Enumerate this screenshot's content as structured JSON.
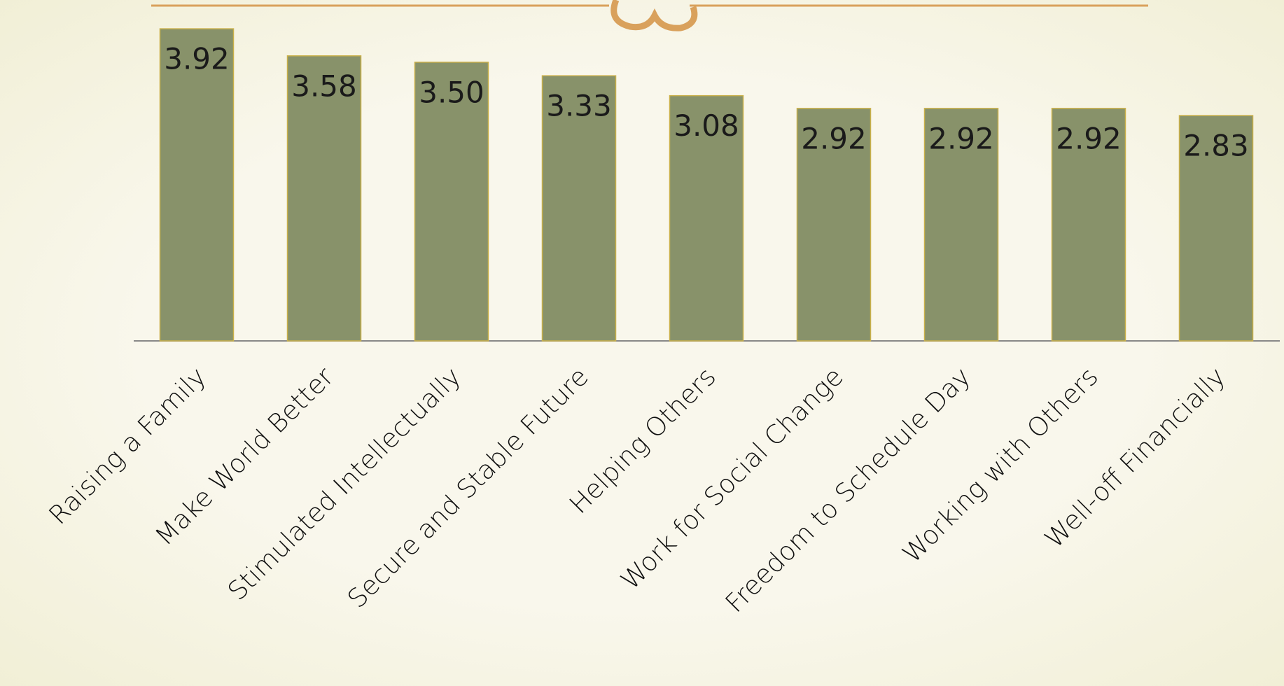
{
  "chart_data": {
    "type": "bar",
    "categories": [
      "Raising a Family",
      "Make World Better",
      "Stimulated Intellectually",
      "Secure and Stable Future",
      "Helping Others",
      "Work for Social Change",
      "Freedom to Schedule Day",
      "Working with Others",
      "Well-off Financially"
    ],
    "values": [
      3.92,
      3.58,
      3.5,
      3.33,
      3.08,
      2.92,
      2.92,
      2.92,
      2.83
    ],
    "value_labels": [
      "3.92",
      "3.58",
      "3.50",
      "3.33",
      "3.08",
      "2.92",
      "2.92",
      "2.92",
      "2.83"
    ],
    "color": "#88926a",
    "ylim": [
      0,
      4
    ]
  }
}
